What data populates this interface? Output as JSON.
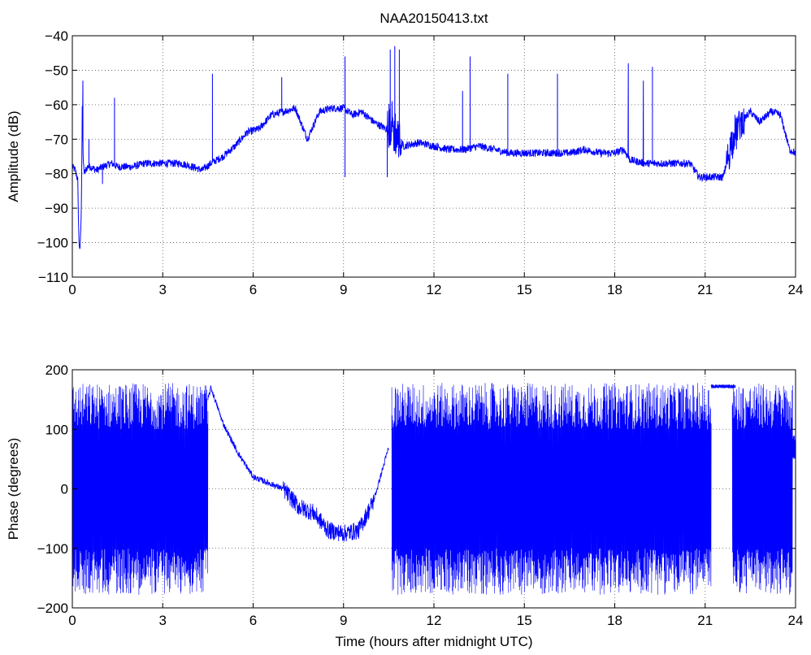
{
  "title": "NAA20150413.txt",
  "colors": {
    "line": "#0000ff",
    "axes": "#000000",
    "grid": "#555555",
    "background": "#ffffff"
  },
  "chart_data": [
    {
      "type": "line",
      "title": "NAA20150413.txt",
      "xlabel": "",
      "ylabel": "Amplitude (dB)",
      "xlim": [
        0,
        24
      ],
      "ylim": [
        -110,
        -40
      ],
      "xticks": [
        0,
        3,
        6,
        9,
        12,
        15,
        18,
        21,
        24
      ],
      "yticks": [
        -110,
        -100,
        -90,
        -80,
        -70,
        -60,
        -50,
        -40
      ],
      "xtick_labels": [
        "0",
        "3",
        "6",
        "9",
        "12",
        "15",
        "18",
        "21",
        "24"
      ],
      "ytick_labels": [
        "−110",
        "−100",
        "−90",
        "−80",
        "−70",
        "−60",
        "−50",
        "−40"
      ],
      "grid": true,
      "series": [
        {
          "x": [
            0,
            0.1,
            0.18,
            0.22,
            0.26,
            0.3,
            0.33,
            0.36,
            0.4,
            0.5,
            0.6,
            0.8,
            1.0,
            1.3,
            1.5,
            2.0,
            2.4,
            2.8,
            3.2,
            3.6,
            4.0,
            4.3,
            4.6,
            5.0,
            5.4,
            5.8,
            6.2,
            6.6,
            7.0,
            7.4,
            7.8,
            8.2,
            8.6,
            9.0,
            9.3,
            9.6,
            10.0,
            10.4,
            10.6,
            10.8,
            11.0,
            11.5,
            12.0,
            12.5,
            13.0,
            13.5,
            14.0,
            14.5,
            15.0,
            15.5,
            16.0,
            16.5,
            17.0,
            17.5,
            18.0,
            18.3,
            18.5,
            19.0,
            19.5,
            20.0,
            20.5,
            20.8,
            21.2,
            21.6,
            21.9,
            22.2,
            22.5,
            22.8,
            23.2,
            23.5,
            23.8,
            24.0
          ],
          "y": [
            -78,
            -79,
            -82,
            -100,
            -102,
            -90,
            -60,
            -76,
            -80,
            -78,
            -78,
            -79,
            -78,
            -77,
            -78,
            -78,
            -77,
            -77,
            -77,
            -77,
            -78,
            -79,
            -77,
            -75,
            -72,
            -68,
            -67,
            -63,
            -62,
            -61,
            -70,
            -62,
            -61,
            -61,
            -63,
            -62,
            -65,
            -67,
            -66,
            -70,
            -72,
            -71,
            -72,
            -73,
            -73,
            -72,
            -73,
            -74,
            -74,
            -74,
            -74,
            -74,
            -73,
            -74,
            -74,
            -73,
            -76,
            -77,
            -77,
            -77,
            -77,
            -81,
            -81,
            -81,
            -70,
            -65,
            -62,
            -65,
            -62,
            -63,
            -73,
            -74
          ],
          "spikes": [
            {
              "x": 0.35,
              "y": -53
            },
            {
              "x": 0.55,
              "y": -70
            },
            {
              "x": 1.0,
              "y": -83
            },
            {
              "x": 1.4,
              "y": -58
            },
            {
              "x": 4.65,
              "y": -51
            },
            {
              "x": 6.95,
              "y": -52
            },
            {
              "x": 9.05,
              "y": -46
            },
            {
              "x": 9.05,
              "y": -81
            },
            {
              "x": 10.45,
              "y": -81
            },
            {
              "x": 10.55,
              "y": -44
            },
            {
              "x": 10.7,
              "y": -43
            },
            {
              "x": 10.85,
              "y": -44
            },
            {
              "x": 12.95,
              "y": -56
            },
            {
              "x": 13.2,
              "y": -46
            },
            {
              "x": 14.45,
              "y": -51
            },
            {
              "x": 16.1,
              "y": -51
            },
            {
              "x": 18.45,
              "y": -48
            },
            {
              "x": 18.95,
              "y": -53
            },
            {
              "x": 19.25,
              "y": -49
            }
          ]
        }
      ]
    },
    {
      "type": "line",
      "title": "",
      "xlabel": "Time (hours after midnight UTC)",
      "ylabel": "Phase (degrees)",
      "xlim": [
        0,
        24
      ],
      "ylim": [
        -200,
        200
      ],
      "xticks": [
        0,
        3,
        6,
        9,
        12,
        15,
        18,
        21,
        24
      ],
      "yticks": [
        -200,
        -100,
        0,
        100,
        200
      ],
      "xtick_labels": [
        "0",
        "3",
        "6",
        "9",
        "12",
        "15",
        "18",
        "21",
        "24"
      ],
      "ytick_labels": [
        "−200",
        "−100",
        "0",
        "100",
        "200"
      ],
      "grid": true,
      "series": [
        {
          "wrapped_segments": [
            [
              0,
              4.5
            ],
            [
              10.6,
              21.2
            ],
            [
              21.9,
              23.9
            ]
          ],
          "x": [
            4.5,
            4.6,
            5.0,
            5.5,
            6.0,
            6.5,
            7.0,
            7.5,
            8.0,
            8.5,
            9.0,
            9.5,
            10.0,
            10.5
          ],
          "y": [
            150,
            170,
            110,
            60,
            20,
            10,
            0,
            -30,
            -40,
            -70,
            -75,
            -70,
            -20,
            70
          ],
          "x_hold": [
            21.2,
            21.9,
            23.9,
            24.0
          ],
          "y_hold": [
            175,
            165,
            60,
            80
          ]
        }
      ]
    }
  ]
}
